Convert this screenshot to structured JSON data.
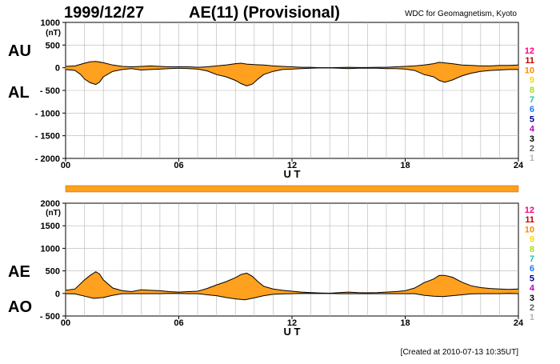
{
  "header": {
    "date": "1999/12/27",
    "title": "AE(11) (Provisional)",
    "source": "WDC for Geomagnetism, Kyoto"
  },
  "footer": {
    "created": "[Created at 2010-07-13 10:35UT]"
  },
  "colors": {
    "fill": "#ffa01e",
    "line": "#000000",
    "grid": "#b4b4b4"
  },
  "station_counts": {
    "labels": [
      "12",
      "11",
      "10",
      "9",
      "8",
      "7",
      "6",
      "5",
      "4",
      "3",
      "2",
      "1"
    ],
    "colors": [
      "#ff0080",
      "#c00000",
      "#ff8c00",
      "#ffd700",
      "#a0e020",
      "#20c0c0",
      "#1e78ff",
      "#000090",
      "#c000c0",
      "#000000",
      "#606060",
      "#b4b4b4"
    ]
  },
  "chart_data": [
    {
      "type": "area",
      "name": "AU-AL",
      "side_labels": [
        "AU",
        "AL"
      ],
      "yunit": "(nT)",
      "xlabel": "U T",
      "xlim": [
        0,
        24
      ],
      "ylim": [
        -2000,
        1000
      ],
      "yticks": [
        1000,
        500,
        0,
        -500,
        -1000,
        -1500,
        -2000
      ],
      "yticklabels": [
        "1000",
        "500",
        "0",
        "- 500",
        "- 1000",
        "- 1500",
        "- 2000"
      ],
      "xticks": [
        0,
        6,
        12,
        18,
        24
      ],
      "xticklabels": [
        "00",
        "06",
        "12",
        "18",
        "24"
      ],
      "grid": true,
      "series": [
        {
          "key": "AU",
          "x": [
            0,
            0.5,
            1,
            1.3,
            1.6,
            2,
            2.5,
            3,
            3.5,
            4,
            4.5,
            5,
            5.5,
            6,
            6.5,
            7,
            7.5,
            8,
            8.5,
            9,
            9.3,
            9.6,
            10,
            10.5,
            11,
            11.5,
            12,
            12.5,
            13,
            13.5,
            14,
            14.5,
            15,
            15.5,
            16,
            16.5,
            17,
            17.5,
            18,
            18.5,
            19,
            19.5,
            19.8,
            20,
            20.5,
            21,
            21.5,
            22,
            22.5,
            23,
            23.5,
            24
          ],
          "y": [
            30,
            40,
            100,
            130,
            140,
            110,
            60,
            30,
            20,
            30,
            40,
            30,
            20,
            20,
            20,
            10,
            20,
            40,
            60,
            90,
            100,
            80,
            70,
            60,
            40,
            30,
            20,
            10,
            10,
            0,
            0,
            5,
            10,
            5,
            5,
            10,
            10,
            20,
            30,
            40,
            60,
            90,
            120,
            110,
            90,
            60,
            50,
            40,
            40,
            50,
            50,
            60
          ]
        },
        {
          "key": "AL",
          "x": [
            0,
            0.5,
            0.8,
            1,
            1.3,
            1.6,
            1.8,
            2,
            2.5,
            3,
            3.5,
            4,
            4.5,
            5,
            5.5,
            6,
            6.5,
            7,
            7.5,
            8,
            8.5,
            9,
            9.3,
            9.6,
            9.9,
            10.2,
            10.5,
            11,
            11.5,
            12,
            12.5,
            13,
            13.5,
            14,
            14.5,
            15,
            15.5,
            16,
            16.5,
            17,
            17.5,
            18,
            18.5,
            19,
            19.5,
            19.8,
            20.1,
            20.5,
            21,
            21.5,
            22,
            22.5,
            23,
            23.5,
            24
          ],
          "y": [
            -40,
            -60,
            -150,
            -250,
            -330,
            -370,
            -320,
            -200,
            -80,
            -40,
            -20,
            -50,
            -40,
            -30,
            -20,
            -10,
            -20,
            -30,
            -70,
            -150,
            -200,
            -280,
            -350,
            -400,
            -360,
            -250,
            -150,
            -80,
            -40,
            -30,
            -20,
            -10,
            -5,
            -5,
            -10,
            -20,
            -10,
            -10,
            -10,
            -20,
            -20,
            -30,
            -60,
            -150,
            -200,
            -280,
            -320,
            -270,
            -180,
            -120,
            -80,
            -60,
            -50,
            -40,
            -40
          ]
        }
      ]
    },
    {
      "type": "area",
      "name": "AE-AO",
      "side_labels": [
        "AE",
        "AO"
      ],
      "yunit": "(nT)",
      "xlabel": "U T",
      "xlim": [
        0,
        24
      ],
      "ylim": [
        -500,
        2000
      ],
      "yticks": [
        2000,
        1500,
        1000,
        500,
        0,
        -500
      ],
      "yticklabels": [
        "2000",
        "1500",
        "1000",
        "500",
        "0",
        "- 500"
      ],
      "xticks": [
        0,
        6,
        12,
        18,
        24
      ],
      "xticklabels": [
        "00",
        "06",
        "12",
        "18",
        "24"
      ],
      "grid": true,
      "series": [
        {
          "key": "AE",
          "x": [
            0,
            0.5,
            1,
            1.3,
            1.6,
            1.8,
            2,
            2.5,
            3,
            3.5,
            4,
            4.5,
            5,
            5.5,
            6,
            6.5,
            7,
            7.5,
            8,
            8.5,
            9,
            9.3,
            9.6,
            9.9,
            10.2,
            10.5,
            11,
            11.5,
            12,
            12.5,
            13,
            13.5,
            14,
            14.5,
            15,
            15.5,
            16,
            16.5,
            17,
            17.5,
            18,
            18.5,
            19,
            19.5,
            19.8,
            20.1,
            20.5,
            21,
            21.5,
            22,
            22.5,
            23,
            23.5,
            24
          ],
          "y": [
            70,
            100,
            300,
            400,
            480,
            430,
            300,
            120,
            60,
            40,
            80,
            70,
            60,
            40,
            30,
            40,
            50,
            110,
            190,
            260,
            350,
            420,
            450,
            380,
            260,
            160,
            100,
            70,
            50,
            30,
            20,
            10,
            5,
            20,
            30,
            20,
            15,
            20,
            30,
            40,
            60,
            120,
            240,
            320,
            400,
            400,
            360,
            250,
            170,
            130,
            110,
            100,
            90,
            100
          ]
        },
        {
          "key": "AO",
          "x": [
            0,
            0.5,
            1,
            1.5,
            2,
            2.5,
            3,
            3.5,
            4,
            4.5,
            5,
            5.5,
            6,
            6.5,
            7,
            7.5,
            8,
            8.5,
            9,
            9.5,
            10,
            10.5,
            11,
            11.5,
            12,
            12.5,
            13,
            13.5,
            14,
            14.5,
            15,
            15.5,
            16,
            16.5,
            17,
            17.5,
            18,
            18.5,
            19,
            19.5,
            20,
            20.5,
            21,
            21.5,
            22,
            22.5,
            23,
            23.5,
            24
          ],
          "y": [
            -5,
            -10,
            -60,
            -110,
            -90,
            -40,
            -5,
            -5,
            -5,
            -5,
            -5,
            0,
            0,
            -5,
            -5,
            -30,
            -50,
            -90,
            -120,
            -140,
            -100,
            -50,
            -20,
            -10,
            -5,
            0,
            0,
            0,
            0,
            -5,
            -5,
            -5,
            -5,
            -5,
            -5,
            -5,
            -5,
            -5,
            -40,
            -60,
            -70,
            -50,
            -30,
            -10,
            -5,
            -5,
            -5,
            0,
            -5
          ]
        }
      ]
    }
  ]
}
